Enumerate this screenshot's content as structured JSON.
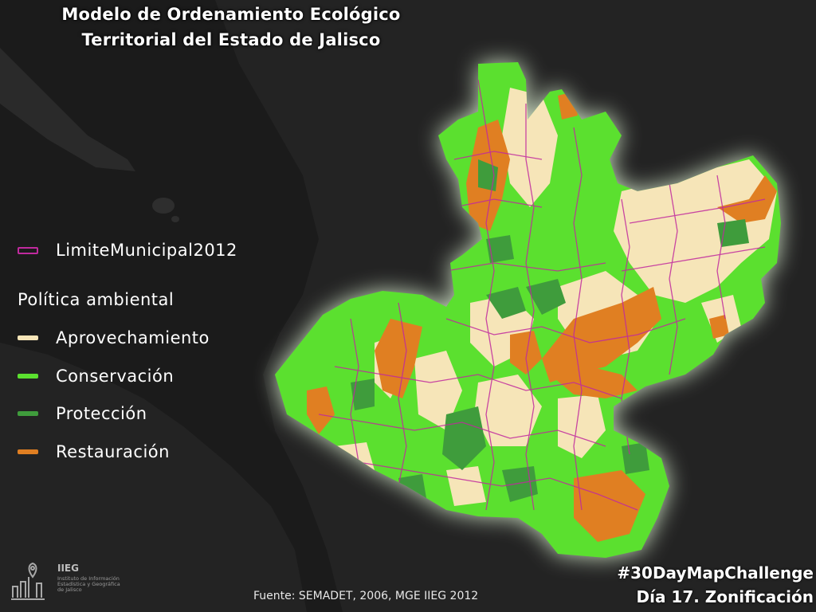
{
  "title": {
    "line1": "Modelo de Ordenamiento Ecológico",
    "line2": "Territorial del Estado de Jalisco"
  },
  "legend": {
    "boundary": {
      "label": "LimiteMunicipal2012",
      "color": "#c02a9e"
    },
    "heading": "Política ambiental",
    "items": [
      {
        "label": "Aprovechamiento",
        "color": "#f6e5b8"
      },
      {
        "label": "Conservación",
        "color": "#5be02f"
      },
      {
        "label": "Protección",
        "color": "#3f9c3c"
      },
      {
        "label": "Restauración",
        "color": "#e07f22"
      }
    ]
  },
  "source": "Fuente: SEMADET, 2006, MGE IIEG 2012",
  "hashtag": {
    "line1": "#30DayMapChallenge",
    "line2": "Día 17. Zonificación"
  },
  "logo": {
    "name": "IIEG",
    "line1": "Instituto de Información",
    "line2": "Estadística y Geográfica",
    "line3": "de Jalisco"
  },
  "colors": {
    "background": "#1b1b1b",
    "land": "#222222",
    "glow": "#e8ffe0"
  }
}
